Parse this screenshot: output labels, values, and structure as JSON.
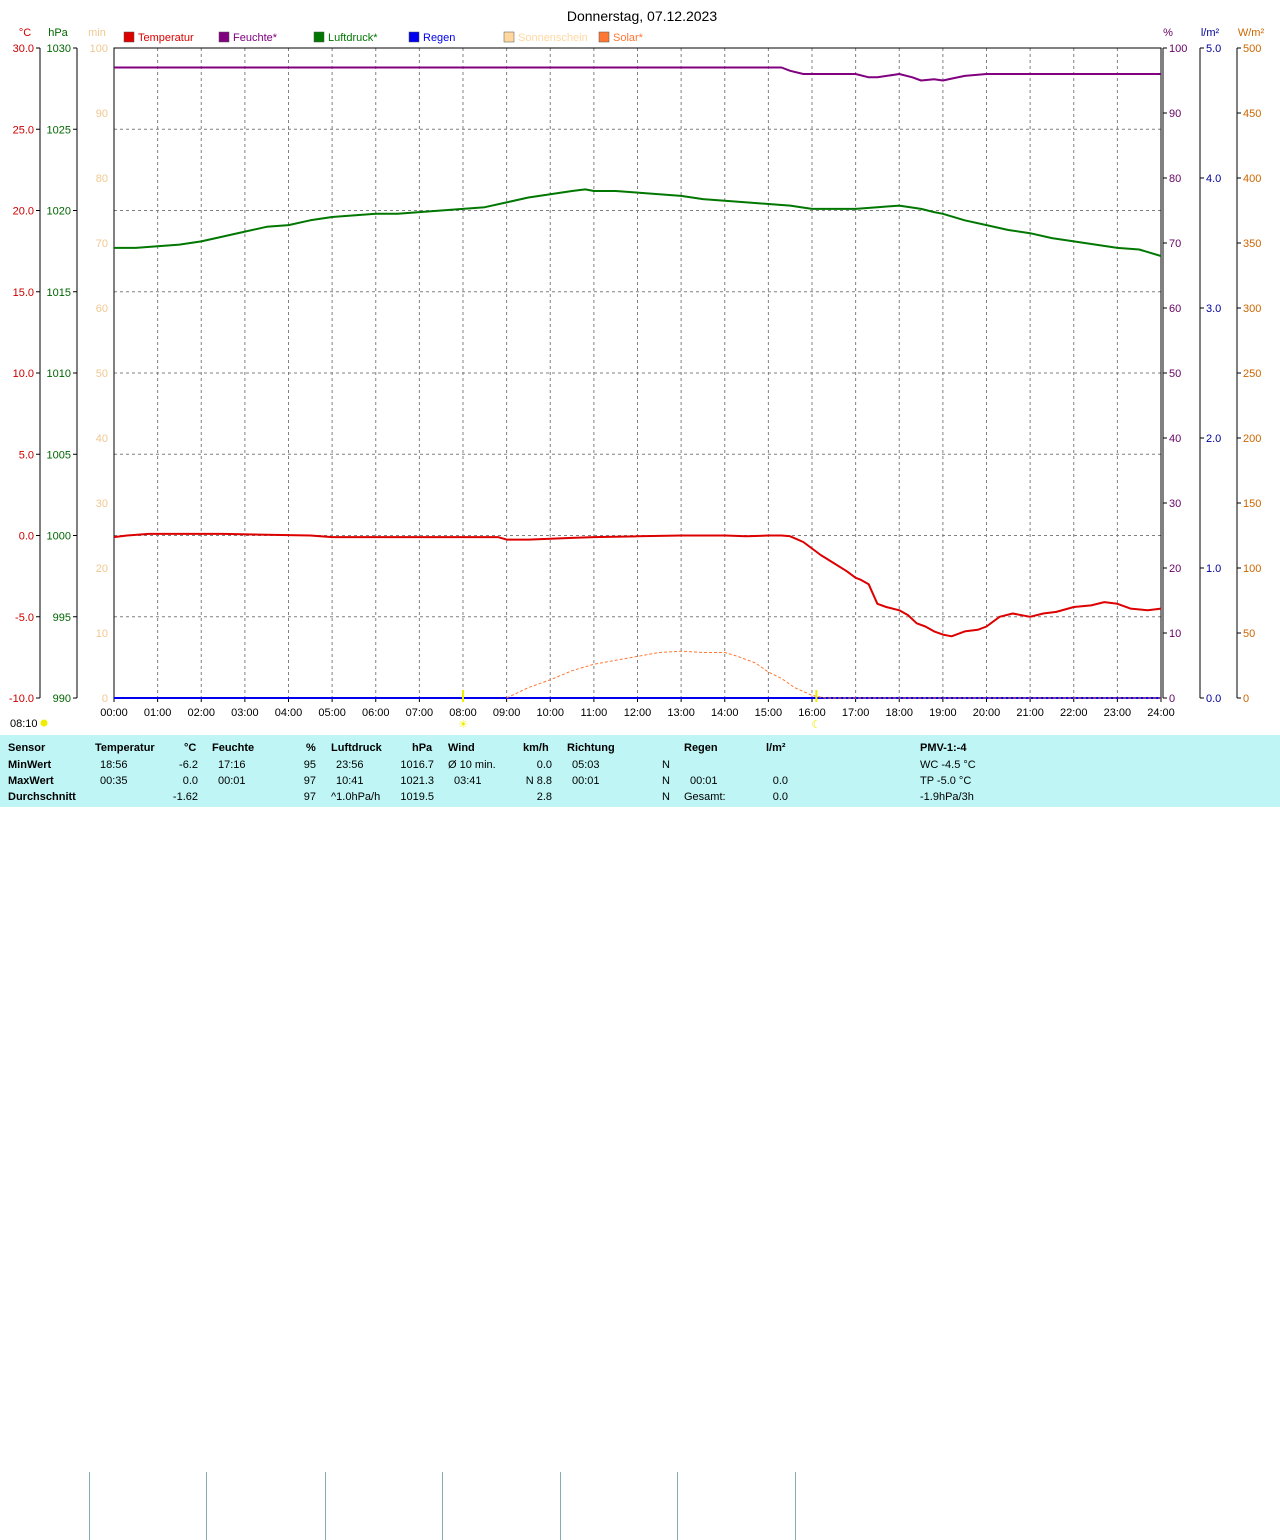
{
  "chart_data": {
    "type": "line",
    "title": "Donnerstag, 07.12.2023",
    "x_ticks": [
      "00:00",
      "01:00",
      "02:00",
      "03:00",
      "04:00",
      "05:00",
      "06:00",
      "07:00",
      "08:00",
      "09:00",
      "10:00",
      "11:00",
      "12:00",
      "13:00",
      "14:00",
      "15:00",
      "16:00",
      "17:00",
      "18:00",
      "19:00",
      "20:00",
      "21:00",
      "22:00",
      "23:00",
      "24:00"
    ],
    "xlim": [
      0,
      24
    ],
    "grid": true,
    "legend_position": "top",
    "axes": {
      "temp": {
        "unit": "°C",
        "range": [
          -10,
          30
        ],
        "ticks": [
          "-10.0",
          "-5.0",
          "0.0",
          "5.0",
          "10.0",
          "15.0",
          "20.0",
          "25.0",
          "30.0"
        ],
        "color": "#cc0000"
      },
      "pressure": {
        "unit": "hPa",
        "range": [
          990,
          1030
        ],
        "ticks": [
          "990",
          "995",
          "1000",
          "1005",
          "1010",
          "1015",
          "1020",
          "1025",
          "1030"
        ],
        "color": "#006600"
      },
      "minutes": {
        "unit": "min",
        "range": [
          0,
          100
        ],
        "ticks": [
          "0",
          "10",
          "20",
          "30",
          "40",
          "50",
          "60",
          "70",
          "80",
          "90",
          "100"
        ],
        "color": "#f0c890"
      },
      "humidity": {
        "unit": "%",
        "range": [
          0,
          100
        ],
        "ticks": [
          "0",
          "10",
          "20",
          "30",
          "40",
          "50",
          "60",
          "70",
          "80",
          "90",
          "100"
        ],
        "color": "#660066"
      },
      "rain": {
        "unit": "l/m²",
        "range": [
          0,
          5
        ],
        "ticks": [
          "0.0",
          "1.0",
          "2.0",
          "3.0",
          "4.0",
          "5.0"
        ],
        "color": "#000099"
      },
      "solar": {
        "unit": "W/m²",
        "range": [
          0,
          500
        ],
        "ticks": [
          "0",
          "50",
          "100",
          "150",
          "200",
          "250",
          "300",
          "350",
          "400",
          "450",
          "500"
        ],
        "color": "#cc6600"
      }
    },
    "legend": [
      {
        "label": "Temperatur",
        "color": "#dd0000"
      },
      {
        "label": "Feuchte*",
        "color": "#800080"
      },
      {
        "label": "Luftdruck*",
        "color": "#007700"
      },
      {
        "label": "Regen",
        "color": "#0000ee"
      },
      {
        "label": "Sonnenschein",
        "color": "#ffd8a0"
      },
      {
        "label": "Solar*",
        "color": "#ff7733"
      }
    ],
    "series": [
      {
        "name": "Temperatur",
        "axis": "temp",
        "color": "#dd0000",
        "x": [
          0,
          0.3,
          0.8,
          1.5,
          2.5,
          3.5,
          4.5,
          5,
          6,
          7,
          8,
          8.8,
          9,
          9.5,
          10,
          10.5,
          11,
          12,
          13,
          14,
          14.5,
          15,
          15.3,
          15.5,
          15.8,
          16,
          16.2,
          16.5,
          16.8,
          17,
          17.1,
          17.3,
          17.5,
          17.7,
          18,
          18.2,
          18.4,
          18.6,
          18.8,
          19,
          19.2,
          19.5,
          19.8,
          20,
          20.3,
          20.6,
          21,
          21.3,
          21.6,
          22,
          22.4,
          22.7,
          23,
          23.3,
          23.7,
          24
        ],
        "y": [
          -0.1,
          0,
          0.1,
          0.1,
          0.1,
          0.05,
          0,
          -0.1,
          -0.1,
          -0.1,
          -0.1,
          -0.1,
          -0.25,
          -0.25,
          -0.2,
          -0.15,
          -0.1,
          -0.05,
          0,
          0,
          -0.05,
          0,
          0,
          -0.05,
          -0.4,
          -0.8,
          -1.2,
          -1.7,
          -2.2,
          -2.6,
          -2.7,
          -3,
          -4.2,
          -4.4,
          -4.6,
          -4.9,
          -5.4,
          -5.6,
          -5.9,
          -6.1,
          -6.2,
          -5.9,
          -5.8,
          -5.6,
          -5,
          -4.8,
          -5,
          -4.8,
          -4.7,
          -4.4,
          -4.3,
          -4.1,
          -4.2,
          -4.5,
          -4.6,
          -4.5
        ]
      },
      {
        "name": "Feuchte*",
        "axis": "humidity",
        "color": "#800080",
        "x": [
          0,
          15.3,
          15.5,
          15.8,
          16,
          17,
          17.3,
          17.5,
          18,
          18.3,
          18.5,
          18.8,
          19,
          19.2,
          19.5,
          20,
          21,
          22,
          23,
          24
        ],
        "y": [
          97,
          97,
          96.5,
          96,
          96,
          96,
          95.5,
          95.5,
          96,
          95.5,
          95,
          95.2,
          95,
          95.3,
          95.7,
          96,
          96,
          96,
          96,
          96
        ]
      },
      {
        "name": "Luftdruck*",
        "axis": "pressure",
        "color": "#007700",
        "x": [
          0,
          0.5,
          1,
          1.5,
          2,
          2.5,
          3,
          3.5,
          4,
          4.5,
          5,
          5.5,
          6,
          6.5,
          7,
          7.5,
          8,
          8.5,
          9,
          9.5,
          10,
          10.5,
          10.8,
          11,
          11.5,
          12,
          12.5,
          13,
          13.5,
          14,
          14.5,
          15,
          15.5,
          16,
          16.5,
          17,
          17.5,
          18,
          18.5,
          18.8,
          19,
          19.5,
          20,
          20.5,
          21,
          21.5,
          22,
          22.5,
          23,
          23.5,
          24
        ],
        "y": [
          1017.7,
          1017.7,
          1017.8,
          1017.9,
          1018.1,
          1018.4,
          1018.7,
          1019,
          1019.1,
          1019.4,
          1019.6,
          1019.7,
          1019.8,
          1019.8,
          1019.9,
          1020,
          1020.1,
          1020.2,
          1020.5,
          1020.8,
          1021,
          1021.2,
          1021.3,
          1021.2,
          1021.2,
          1021.1,
          1021,
          1020.9,
          1020.7,
          1020.6,
          1020.5,
          1020.4,
          1020.3,
          1020.1,
          1020.1,
          1020.1,
          1020.2,
          1020.3,
          1020.1,
          1019.9,
          1019.8,
          1019.4,
          1019.1,
          1018.8,
          1018.6,
          1018.3,
          1018.1,
          1017.9,
          1017.7,
          1017.6,
          1017.2
        ]
      },
      {
        "name": "Regen",
        "axis": "rain",
        "color": "#0000ee",
        "x": [
          0,
          24
        ],
        "y": [
          0,
          0
        ]
      },
      {
        "name": "Solar*",
        "axis": "solar",
        "color": "#ff7733",
        "dashed": true,
        "x": [
          9,
          9.5,
          10,
          10.5,
          11,
          11.5,
          12,
          12.5,
          13,
          13.5,
          14,
          14.3,
          14.7,
          15,
          15.3,
          15.6,
          16,
          16.3,
          24
        ],
        "y": [
          0,
          8,
          14,
          21,
          26,
          29,
          32,
          35,
          36,
          35,
          35,
          32,
          27,
          20,
          15,
          8,
          2,
          0,
          0
        ]
      }
    ],
    "markers": [
      {
        "x": 8.0,
        "color": "#eeee00",
        "label": "☀"
      },
      {
        "x": 16.1,
        "color": "#eeee00",
        "label": "☾"
      }
    ],
    "corner_time": "08:10"
  },
  "table": {
    "header": {
      "sensor": "Sensor",
      "temperatur": "Temperatur",
      "temp_unit": "°C",
      "feuchte": "Feuchte",
      "feuchte_unit": "%",
      "luftdruck": "Luftdruck",
      "luftdruck_unit": "hPa",
      "wind": "Wind",
      "wind_unit": "km/h",
      "richtung": "Richtung",
      "regen": "Regen",
      "regen_unit": "l/m²",
      "pmv": "PMV-1:-4"
    },
    "rows": [
      {
        "label": "MinWert",
        "t_time": "18:56",
        "t_val": "-6.2",
        "f_time": "17:16",
        "f_val": "95",
        "p_time": "23:56",
        "p_val": "1016.7",
        "w_time": "Ø 10 min.",
        "w_val": "0.0",
        "r_time": "05:03",
        "r_dir": "N",
        "rg_time": "",
        "rg_val": "",
        "extra": "WC -4.5 °C"
      },
      {
        "label": "MaxWert",
        "t_time": "00:35",
        "t_val": "0.0",
        "f_time": "00:01",
        "f_val": "97",
        "p_time": "10:41",
        "p_val": "1021.3",
        "w_time": "03:41",
        "w_val": "N 8.8",
        "r_time": "00:01",
        "r_dir": "N",
        "rg_time": "00:01",
        "rg_val": "0.0",
        "extra": "TP -5.0 °C"
      },
      {
        "label": "Durchschnitt",
        "t_time": "",
        "t_val": "-1.62",
        "f_time": "",
        "f_val": "97",
        "p_time": "^1.0hPa/h",
        "p_val": "1019.5",
        "w_time": "",
        "w_val": "2.8",
        "r_time": "",
        "r_dir": "N",
        "rg_time": "Gesamt:",
        "rg_val": "0.0",
        "extra": "-1.9hPa/3h"
      }
    ]
  }
}
